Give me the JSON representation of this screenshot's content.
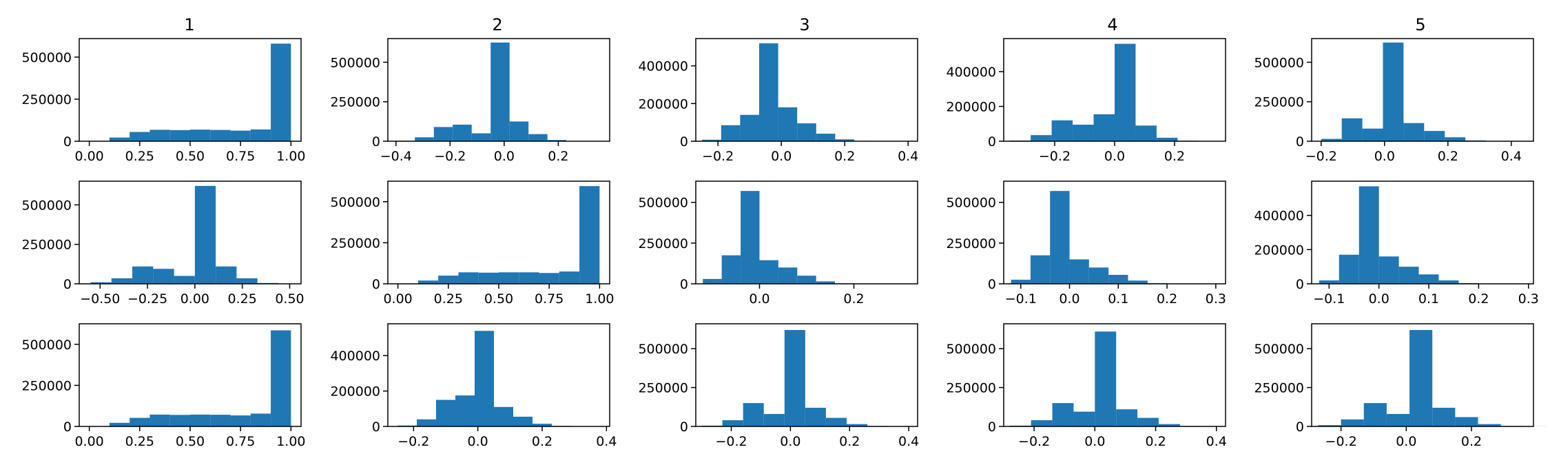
{
  "figure": {
    "bar_color": "#1f77b4",
    "column_titles": [
      "1",
      "2",
      "3",
      "4",
      "5"
    ]
  },
  "chart_data": [
    {
      "type": "bar",
      "row": 1,
      "col": 1,
      "xlim": [
        -0.05,
        1.05
      ],
      "ylim": [
        0,
        610000
      ],
      "bin_edges": [
        0.0,
        0.1,
        0.2,
        0.3,
        0.4,
        0.5,
        0.6,
        0.7,
        0.8,
        0.9,
        1.0
      ],
      "values": [
        2000,
        22000,
        55000,
        68000,
        66000,
        69000,
        67000,
        63000,
        70000,
        580000
      ],
      "xticks": [
        0.0,
        0.25,
        0.5,
        0.75,
        1.0
      ],
      "xtick_labels": [
        "0.00",
        "0.25",
        "0.50",
        "0.75",
        "1.00"
      ],
      "yticks": [
        0,
        250000,
        500000
      ],
      "ytick_labels": [
        "0",
        "250000",
        "500000"
      ]
    },
    {
      "type": "bar",
      "row": 1,
      "col": 2,
      "xlim": [
        -0.43,
        0.39
      ],
      "ylim": [
        0,
        650000
      ],
      "bin_edges": [
        -0.4,
        -0.33,
        -0.26,
        -0.19,
        -0.12,
        -0.05,
        0.02,
        0.09,
        0.16,
        0.23,
        0.3
      ],
      "values": [
        3000,
        25000,
        90000,
        105000,
        50000,
        625000,
        125000,
        45000,
        8000,
        1000
      ],
      "xticks": [
        -0.4,
        -0.2,
        0.0,
        0.2
      ],
      "xtick_labels": [
        "−0.4",
        "−0.2",
        "0.0",
        "0.2"
      ],
      "yticks": [
        0,
        250000,
        500000
      ],
      "ytick_labels": [
        "0",
        "250000",
        "500000"
      ]
    },
    {
      "type": "bar",
      "row": 1,
      "col": 3,
      "xlim": [
        -0.27,
        0.43
      ],
      "ylim": [
        0,
        545000
      ],
      "bin_edges": [
        -0.25,
        -0.19,
        -0.13,
        -0.07,
        -0.01,
        0.05,
        0.11,
        0.17,
        0.23,
        0.29,
        0.35
      ],
      "values": [
        8000,
        85000,
        140000,
        520000,
        180000,
        95000,
        40000,
        10000,
        2000,
        500
      ],
      "xticks": [
        -0.2,
        0.0,
        0.2,
        0.4
      ],
      "xtick_labels": [
        "−0.2",
        "0.0",
        "0.2",
        "0.4"
      ],
      "yticks": [
        0,
        200000,
        400000
      ],
      "ytick_labels": [
        "0",
        "200000",
        "400000"
      ]
    },
    {
      "type": "bar",
      "row": 1,
      "col": 4,
      "xlim": [
        -0.37,
        0.37
      ],
      "ylim": [
        0,
        590000
      ],
      "bin_edges": [
        -0.35,
        -0.28,
        -0.21,
        -0.14,
        -0.07,
        0.0,
        0.07,
        0.14,
        0.21,
        0.28,
        0.35
      ],
      "values": [
        4000,
        35000,
        120000,
        95000,
        155000,
        560000,
        90000,
        20000,
        3000,
        500
      ],
      "xticks": [
        -0.2,
        0.0,
        0.2
      ],
      "xtick_labels": [
        "−0.2",
        "0.0",
        "0.2"
      ],
      "yticks": [
        0,
        200000,
        400000
      ],
      "ytick_labels": [
        "0",
        "200000",
        "400000"
      ]
    },
    {
      "type": "bar",
      "row": 1,
      "col": 5,
      "xlim": [
        -0.23,
        0.47
      ],
      "ylim": [
        0,
        650000
      ],
      "bin_edges": [
        -0.2,
        -0.135,
        -0.07,
        -0.005,
        0.06,
        0.125,
        0.19,
        0.255,
        0.32,
        0.385,
        0.45
      ],
      "values": [
        15000,
        145000,
        80000,
        625000,
        115000,
        65000,
        25000,
        5000,
        1000,
        500
      ],
      "xticks": [
        -0.2,
        0.0,
        0.2,
        0.4
      ],
      "xtick_labels": [
        "−0.2",
        "0.0",
        "0.2",
        "0.4"
      ],
      "yticks": [
        0,
        250000,
        500000
      ],
      "ytick_labels": [
        "0",
        "250000",
        "500000"
      ]
    },
    {
      "type": "bar",
      "row": 2,
      "col": 1,
      "xlim": [
        -0.61,
        0.56
      ],
      "ylim": [
        0,
        650000
      ],
      "bin_edges": [
        -0.55,
        -0.44,
        -0.33,
        -0.22,
        -0.11,
        0.0,
        0.11,
        0.22,
        0.33,
        0.44,
        0.55
      ],
      "values": [
        10000,
        35000,
        110000,
        95000,
        50000,
        620000,
        110000,
        35000,
        5000,
        1000
      ],
      "xticks": [
        -0.5,
        -0.25,
        0.0,
        0.25,
        0.5
      ],
      "xtick_labels": [
        "−0.50",
        "−0.25",
        "0.00",
        "0.25",
        "0.50"
      ],
      "yticks": [
        0,
        250000,
        500000
      ],
      "ytick_labels": [
        "0",
        "250000",
        "500000"
      ]
    },
    {
      "type": "bar",
      "row": 2,
      "col": 2,
      "xlim": [
        -0.05,
        1.05
      ],
      "ylim": [
        0,
        625000
      ],
      "bin_edges": [
        0.0,
        0.1,
        0.2,
        0.3,
        0.4,
        0.5,
        0.6,
        0.7,
        0.8,
        0.9,
        1.0
      ],
      "values": [
        2000,
        20000,
        50000,
        70000,
        68000,
        70000,
        70000,
        66000,
        75000,
        595000
      ],
      "xticks": [
        0.0,
        0.25,
        0.5,
        0.75,
        1.0
      ],
      "xtick_labels": [
        "0.00",
        "0.25",
        "0.50",
        "0.75",
        "1.00"
      ],
      "yticks": [
        0,
        250000,
        500000
      ],
      "ytick_labels": [
        "0",
        "250000",
        "500000"
      ]
    },
    {
      "type": "bar",
      "row": 2,
      "col": 3,
      "xlim": [
        -0.135,
        0.335
      ],
      "ylim": [
        0,
        630000
      ],
      "bin_edges": [
        -0.12,
        -0.08,
        -0.04,
        0.0,
        0.04,
        0.08,
        0.12,
        0.16,
        0.2,
        0.24,
        0.28
      ],
      "values": [
        30000,
        175000,
        570000,
        145000,
        100000,
        50000,
        15000,
        3000,
        1000,
        500
      ],
      "xticks": [
        0.0,
        0.2
      ],
      "xtick_labels": [
        "0.0",
        "0.2"
      ],
      "yticks": [
        0,
        250000,
        500000
      ],
      "ytick_labels": [
        "0",
        "250000",
        "500000"
      ]
    },
    {
      "type": "bar",
      "row": 2,
      "col": 4,
      "xlim": [
        -0.135,
        0.32
      ],
      "ylim": [
        0,
        630000
      ],
      "bin_edges": [
        -0.12,
        -0.08,
        -0.04,
        0.0,
        0.04,
        0.08,
        0.12,
        0.16,
        0.2,
        0.24,
        0.28
      ],
      "values": [
        25000,
        175000,
        570000,
        150000,
        100000,
        55000,
        20000,
        4000,
        1000,
        500
      ],
      "xticks": [
        -0.1,
        0.0,
        0.1,
        0.2,
        0.3
      ],
      "xtick_labels": [
        "−0.1",
        "0.0",
        "0.1",
        "0.2",
        "0.3"
      ],
      "yticks": [
        0,
        250000,
        500000
      ],
      "ytick_labels": [
        "0",
        "250000",
        "500000"
      ]
    },
    {
      "type": "bar",
      "row": 2,
      "col": 5,
      "xlim": [
        -0.135,
        0.31
      ],
      "ylim": [
        0,
        600000
      ],
      "bin_edges": [
        -0.12,
        -0.08,
        -0.04,
        0.0,
        0.04,
        0.08,
        0.12,
        0.16,
        0.2,
        0.24,
        0.28
      ],
      "values": [
        20000,
        170000,
        570000,
        160000,
        100000,
        55000,
        20000,
        4000,
        1000,
        500
      ],
      "xticks": [
        -0.1,
        0.0,
        0.1,
        0.2,
        0.3
      ],
      "xtick_labels": [
        "−0.1",
        "0.0",
        "0.1",
        "0.2",
        "0.3"
      ],
      "yticks": [
        0,
        200000,
        400000
      ],
      "ytick_labels": [
        "0",
        "200000",
        "400000"
      ]
    },
    {
      "type": "bar",
      "row": 3,
      "col": 1,
      "xlim": [
        -0.05,
        1.05
      ],
      "ylim": [
        0,
        625000
      ],
      "bin_edges": [
        0.0,
        0.1,
        0.2,
        0.3,
        0.4,
        0.5,
        0.6,
        0.7,
        0.8,
        0.9,
        1.0
      ],
      "values": [
        2000,
        22000,
        52000,
        72000,
        70000,
        72000,
        71000,
        67000,
        78000,
        585000
      ],
      "xticks": [
        0.0,
        0.25,
        0.5,
        0.75,
        1.0
      ],
      "xtick_labels": [
        "0.00",
        "0.25",
        "0.50",
        "0.75",
        "1.00"
      ],
      "yticks": [
        0,
        250000,
        500000
      ],
      "ytick_labels": [
        "0",
        "250000",
        "500000"
      ]
    },
    {
      "type": "bar",
      "row": 3,
      "col": 2,
      "xlim": [
        -0.28,
        0.41
      ],
      "ylim": [
        0,
        580000
      ],
      "bin_edges": [
        -0.25,
        -0.19,
        -0.13,
        -0.07,
        -0.01,
        0.05,
        0.11,
        0.17,
        0.23,
        0.29,
        0.35
      ],
      "values": [
        5000,
        40000,
        150000,
        175000,
        540000,
        110000,
        55000,
        15000,
        3000,
        500
      ],
      "xticks": [
        -0.2,
        0.0,
        0.2,
        0.4
      ],
      "xtick_labels": [
        "−0.2",
        "0.0",
        "0.2",
        "0.4"
      ],
      "yticks": [
        0,
        200000,
        400000
      ],
      "ytick_labels": [
        "0",
        "200000",
        "400000"
      ]
    },
    {
      "type": "bar",
      "row": 3,
      "col": 3,
      "xlim": [
        -0.32,
        0.43
      ],
      "ylim": [
        0,
        660000
      ],
      "bin_edges": [
        -0.3,
        -0.23,
        -0.16,
        -0.09,
        -0.02,
        0.05,
        0.12,
        0.19,
        0.26,
        0.33,
        0.4
      ],
      "values": [
        5000,
        40000,
        150000,
        80000,
        620000,
        120000,
        55000,
        15000,
        3000,
        500
      ],
      "xticks": [
        -0.2,
        0.0,
        0.2,
        0.4
      ],
      "xtick_labels": [
        "−0.2",
        "0.0",
        "0.2",
        "0.4"
      ],
      "yticks": [
        0,
        250000,
        500000
      ],
      "ytick_labels": [
        "0",
        "250000",
        "500000"
      ]
    },
    {
      "type": "bar",
      "row": 3,
      "col": 4,
      "xlim": [
        -0.3,
        0.43
      ],
      "ylim": [
        0,
        660000
      ],
      "bin_edges": [
        -0.28,
        -0.21,
        -0.14,
        -0.07,
        0.0,
        0.07,
        0.14,
        0.21,
        0.28,
        0.35,
        0.42
      ],
      "values": [
        5000,
        40000,
        150000,
        95000,
        610000,
        110000,
        55000,
        15000,
        3000,
        500
      ],
      "xticks": [
        -0.2,
        0.0,
        0.2,
        0.4
      ],
      "xtick_labels": [
        "−0.2",
        "0.0",
        "0.2",
        "0.4"
      ],
      "yticks": [
        0,
        250000,
        500000
      ],
      "ytick_labels": [
        "0",
        "250000",
        "500000"
      ]
    },
    {
      "type": "bar",
      "row": 3,
      "col": 5,
      "xlim": [
        -0.29,
        0.39
      ],
      "ylim": [
        0,
        660000
      ],
      "bin_edges": [
        -0.27,
        -0.2,
        -0.13,
        -0.06,
        0.01,
        0.08,
        0.15,
        0.22,
        0.29,
        0.36,
        0.43
      ],
      "values": [
        8000,
        45000,
        150000,
        80000,
        620000,
        120000,
        60000,
        15000,
        3000,
        500
      ],
      "xticks": [
        -0.2,
        0.0,
        0.2
      ],
      "xtick_labels": [
        "−0.2",
        "0.0",
        "0.2"
      ],
      "yticks": [
        0,
        250000,
        500000
      ],
      "ytick_labels": [
        "0",
        "250000",
        "500000"
      ]
    }
  ]
}
